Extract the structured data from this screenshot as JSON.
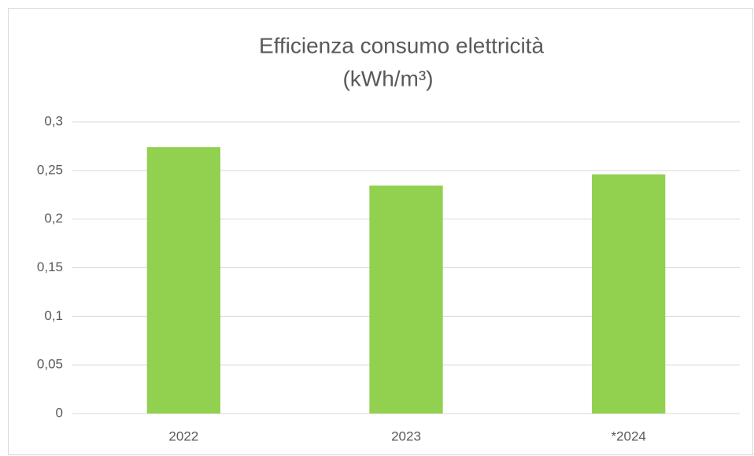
{
  "chart_data": {
    "type": "bar",
    "title": [
      "Efficienza consumo elettricità",
      "(kWh/m³)"
    ],
    "categories": [
      "2022",
      "2023",
      "*2024"
    ],
    "values": [
      0.274,
      0.2345,
      0.246
    ],
    "color": "#92d050",
    "ylim": [
      0,
      0.3
    ],
    "yticks": [
      0,
      {
        "value": 0.05,
        "label": "0,05"
      },
      {
        "value": 0.1,
        "label": "0,1"
      },
      {
        "value": 0.15,
        "label": "0,15"
      },
      {
        "value": 0.2,
        "label": "0,2"
      },
      {
        "value": 0.25,
        "label": "0,25"
      },
      {
        "value": 0.3,
        "label": "0,3"
      }
    ],
    "grid": true
  }
}
